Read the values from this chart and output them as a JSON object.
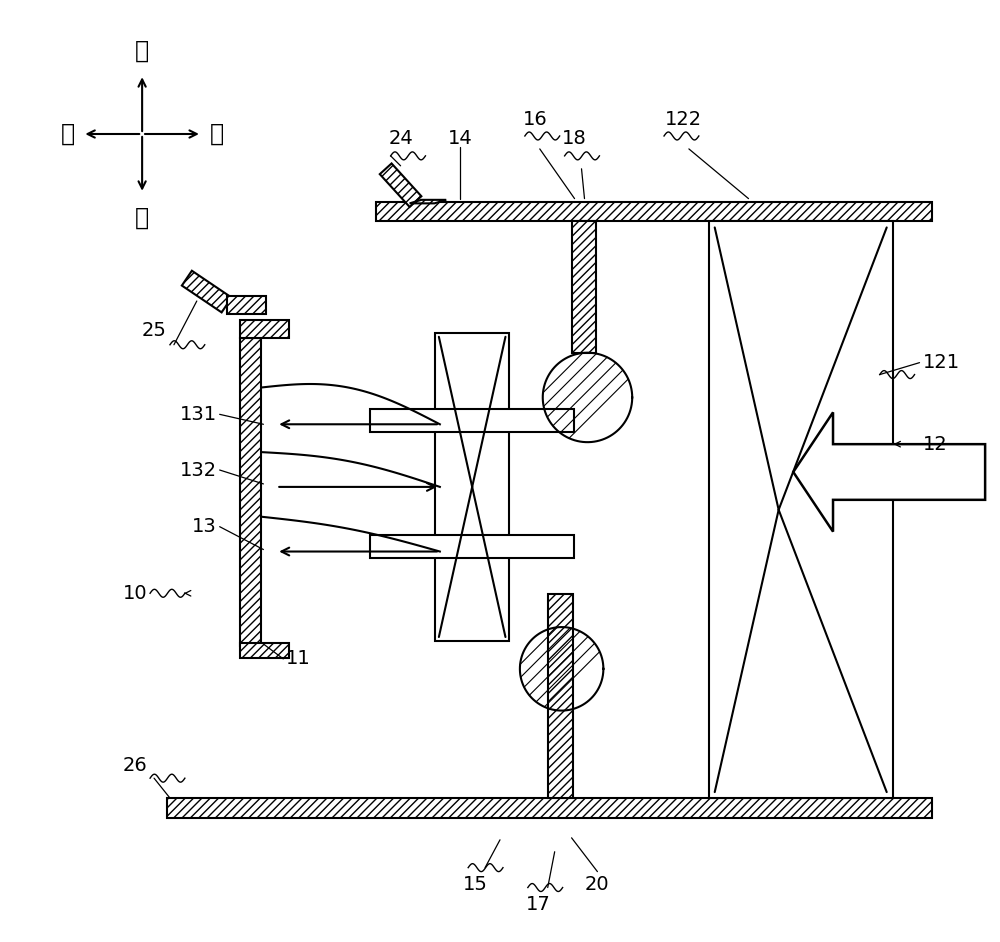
{
  "bg_color": "#ffffff",
  "line_color": "#000000",
  "fig_width": 10.0,
  "fig_height": 9.42,
  "dpi": 100,
  "labels": {
    "shang": "上",
    "xia": "下",
    "qian": "前",
    "hou": "后",
    "n10": "10",
    "n11": "11",
    "n12": "12",
    "n13": "13",
    "n14": "14",
    "n15": "15",
    "n16": "16",
    "n17": "17",
    "n18": "18",
    "n20": "20",
    "n24": "24",
    "n25": "25",
    "n26": "26",
    "n121": "121",
    "n122": "122",
    "n131": "131",
    "n132": "132"
  }
}
